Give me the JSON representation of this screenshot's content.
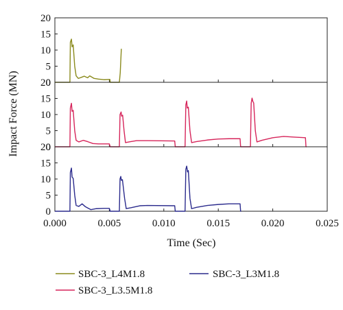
{
  "chart_data": {
    "type": "line",
    "layout": "three stacked panels sharing the x axis",
    "xlabel": "Time (Sec)",
    "ylabel": "Impact Force (MN)",
    "xlim": [
      0,
      0.025
    ],
    "x_ticks": [
      "0.000",
      "0.005",
      "0.010",
      "0.015",
      "0.020",
      "0.025"
    ],
    "panels": [
      {
        "series": "SBC-3_L4M1.8",
        "color": "#8a8a1c",
        "ylim": [
          0,
          20
        ],
        "y_ticks": [
          "0",
          "5",
          "10",
          "15",
          "20"
        ],
        "y_tick_values": [
          0,
          5,
          10,
          15,
          20
        ],
        "points": [
          [
            0,
            0
          ],
          [
            0.00138,
            0
          ],
          [
            0.00142,
            12.4
          ],
          [
            0.00152,
            13.4
          ],
          [
            0.00158,
            11
          ],
          [
            0.00168,
            11.6
          ],
          [
            0.00182,
            5
          ],
          [
            0.00195,
            2
          ],
          [
            0.00215,
            1.2
          ],
          [
            0.0024,
            1.5
          ],
          [
            0.0027,
            1.9
          ],
          [
            0.003,
            1.4
          ],
          [
            0.0032,
            2
          ],
          [
            0.0036,
            1.2
          ],
          [
            0.004,
            1
          ],
          [
            0.0045,
            0.8
          ],
          [
            0.005,
            0.9
          ],
          [
            0.00505,
            0.9
          ],
          [
            0.00508,
            0
          ],
          [
            0.00592,
            0
          ],
          [
            0.006,
            3
          ],
          [
            0.0061,
            10.4
          ]
        ]
      },
      {
        "series": "SBC-3_L3.5M1.8",
        "color": "#d6245a",
        "ylim": [
          0,
          20
        ],
        "y_ticks": [
          "0",
          "5",
          "10",
          "15"
        ],
        "y_tick_values": [
          0,
          5,
          10,
          15
        ],
        "top_tick_label": "20",
        "points": [
          [
            0,
            0
          ],
          [
            0.00138,
            0
          ],
          [
            0.00142,
            12
          ],
          [
            0.00152,
            13.5
          ],
          [
            0.00158,
            11
          ],
          [
            0.00168,
            11.3
          ],
          [
            0.00182,
            5
          ],
          [
            0.00195,
            2
          ],
          [
            0.0022,
            1.5
          ],
          [
            0.0026,
            2
          ],
          [
            0.003,
            1.6
          ],
          [
            0.0035,
            1
          ],
          [
            0.004,
            0.9
          ],
          [
            0.005,
            0.9
          ],
          [
            0.00508,
            0
          ],
          [
            0.00592,
            0
          ],
          [
            0.00598,
            10
          ],
          [
            0.00608,
            10.8
          ],
          [
            0.00612,
            9.5
          ],
          [
            0.00622,
            9.8
          ],
          [
            0.00635,
            5
          ],
          [
            0.00648,
            1.3
          ],
          [
            0.0068,
            1.5
          ],
          [
            0.0075,
            1.9
          ],
          [
            0.0085,
            1.9
          ],
          [
            0.011,
            1.8
          ],
          [
            0.01105,
            0
          ],
          [
            0.01195,
            0
          ],
          [
            0.01202,
            13
          ],
          [
            0.0121,
            14.2
          ],
          [
            0.01215,
            12
          ],
          [
            0.01225,
            12.3
          ],
          [
            0.0124,
            5
          ],
          [
            0.01255,
            1.3
          ],
          [
            0.013,
            1.6
          ],
          [
            0.014,
            2.1
          ],
          [
            0.015,
            2.4
          ],
          [
            0.016,
            2.5
          ],
          [
            0.017,
            2.5
          ],
          [
            0.01705,
            0
          ],
          [
            0.01795,
            0
          ],
          [
            0.01802,
            13.5
          ],
          [
            0.0181,
            15.1
          ],
          [
            0.01818,
            14
          ],
          [
            0.01825,
            13.6
          ],
          [
            0.0184,
            5
          ],
          [
            0.01855,
            1.5
          ],
          [
            0.019,
            2
          ],
          [
            0.02,
            2.8
          ],
          [
            0.021,
            3.2
          ],
          [
            0.022,
            3
          ],
          [
            0.023,
            2.8
          ],
          [
            0.02305,
            0
          ],
          [
            0.0231,
            0
          ]
        ]
      },
      {
        "series": "SBC-3_L3M1.8",
        "color": "#2a2a8c",
        "ylim": [
          0,
          20
        ],
        "y_ticks": [
          "0",
          "5",
          "10",
          "15"
        ],
        "y_tick_values": [
          0,
          5,
          10,
          15
        ],
        "top_tick_label": "20",
        "points": [
          [
            0,
            0
          ],
          [
            0.00138,
            0
          ],
          [
            0.00142,
            12
          ],
          [
            0.00152,
            13.4
          ],
          [
            0.00158,
            10.6
          ],
          [
            0.00168,
            10.2
          ],
          [
            0.00182,
            5
          ],
          [
            0.00195,
            1.8
          ],
          [
            0.0022,
            1.5
          ],
          [
            0.0025,
            2.3
          ],
          [
            0.0028,
            1.4
          ],
          [
            0.0033,
            0.5
          ],
          [
            0.0038,
            0.8
          ],
          [
            0.0045,
            0.9
          ],
          [
            0.005,
            0.9
          ],
          [
            0.00508,
            0
          ],
          [
            0.00592,
            0
          ],
          [
            0.00598,
            10
          ],
          [
            0.00605,
            10.8
          ],
          [
            0.0061,
            9.6
          ],
          [
            0.0062,
            9.8
          ],
          [
            0.0064,
            4
          ],
          [
            0.00655,
            0.8
          ],
          [
            0.007,
            1.1
          ],
          [
            0.0078,
            1.7
          ],
          [
            0.0085,
            1.8
          ],
          [
            0.011,
            1.7
          ],
          [
            0.01105,
            0
          ],
          [
            0.01195,
            0
          ],
          [
            0.01202,
            13
          ],
          [
            0.0121,
            14
          ],
          [
            0.01218,
            12.2
          ],
          [
            0.01225,
            12.6
          ],
          [
            0.0124,
            4
          ],
          [
            0.01255,
            0.8
          ],
          [
            0.013,
            1.2
          ],
          [
            0.014,
            1.8
          ],
          [
            0.015,
            2.1
          ],
          [
            0.016,
            2.3
          ],
          [
            0.017,
            2.3
          ],
          [
            0.01705,
            0
          ],
          [
            0.0171,
            0
          ]
        ]
      }
    ],
    "legend": {
      "placement": "bottom",
      "entries": [
        {
          "label": "SBC-3_L4M1.8",
          "color": "#8a8a1c"
        },
        {
          "label": "SBC-3_L3M1.8",
          "color": "#2a2a8c"
        },
        {
          "label": "SBC-3_L3.5M1.8",
          "color": "#d6245a"
        }
      ]
    }
  }
}
